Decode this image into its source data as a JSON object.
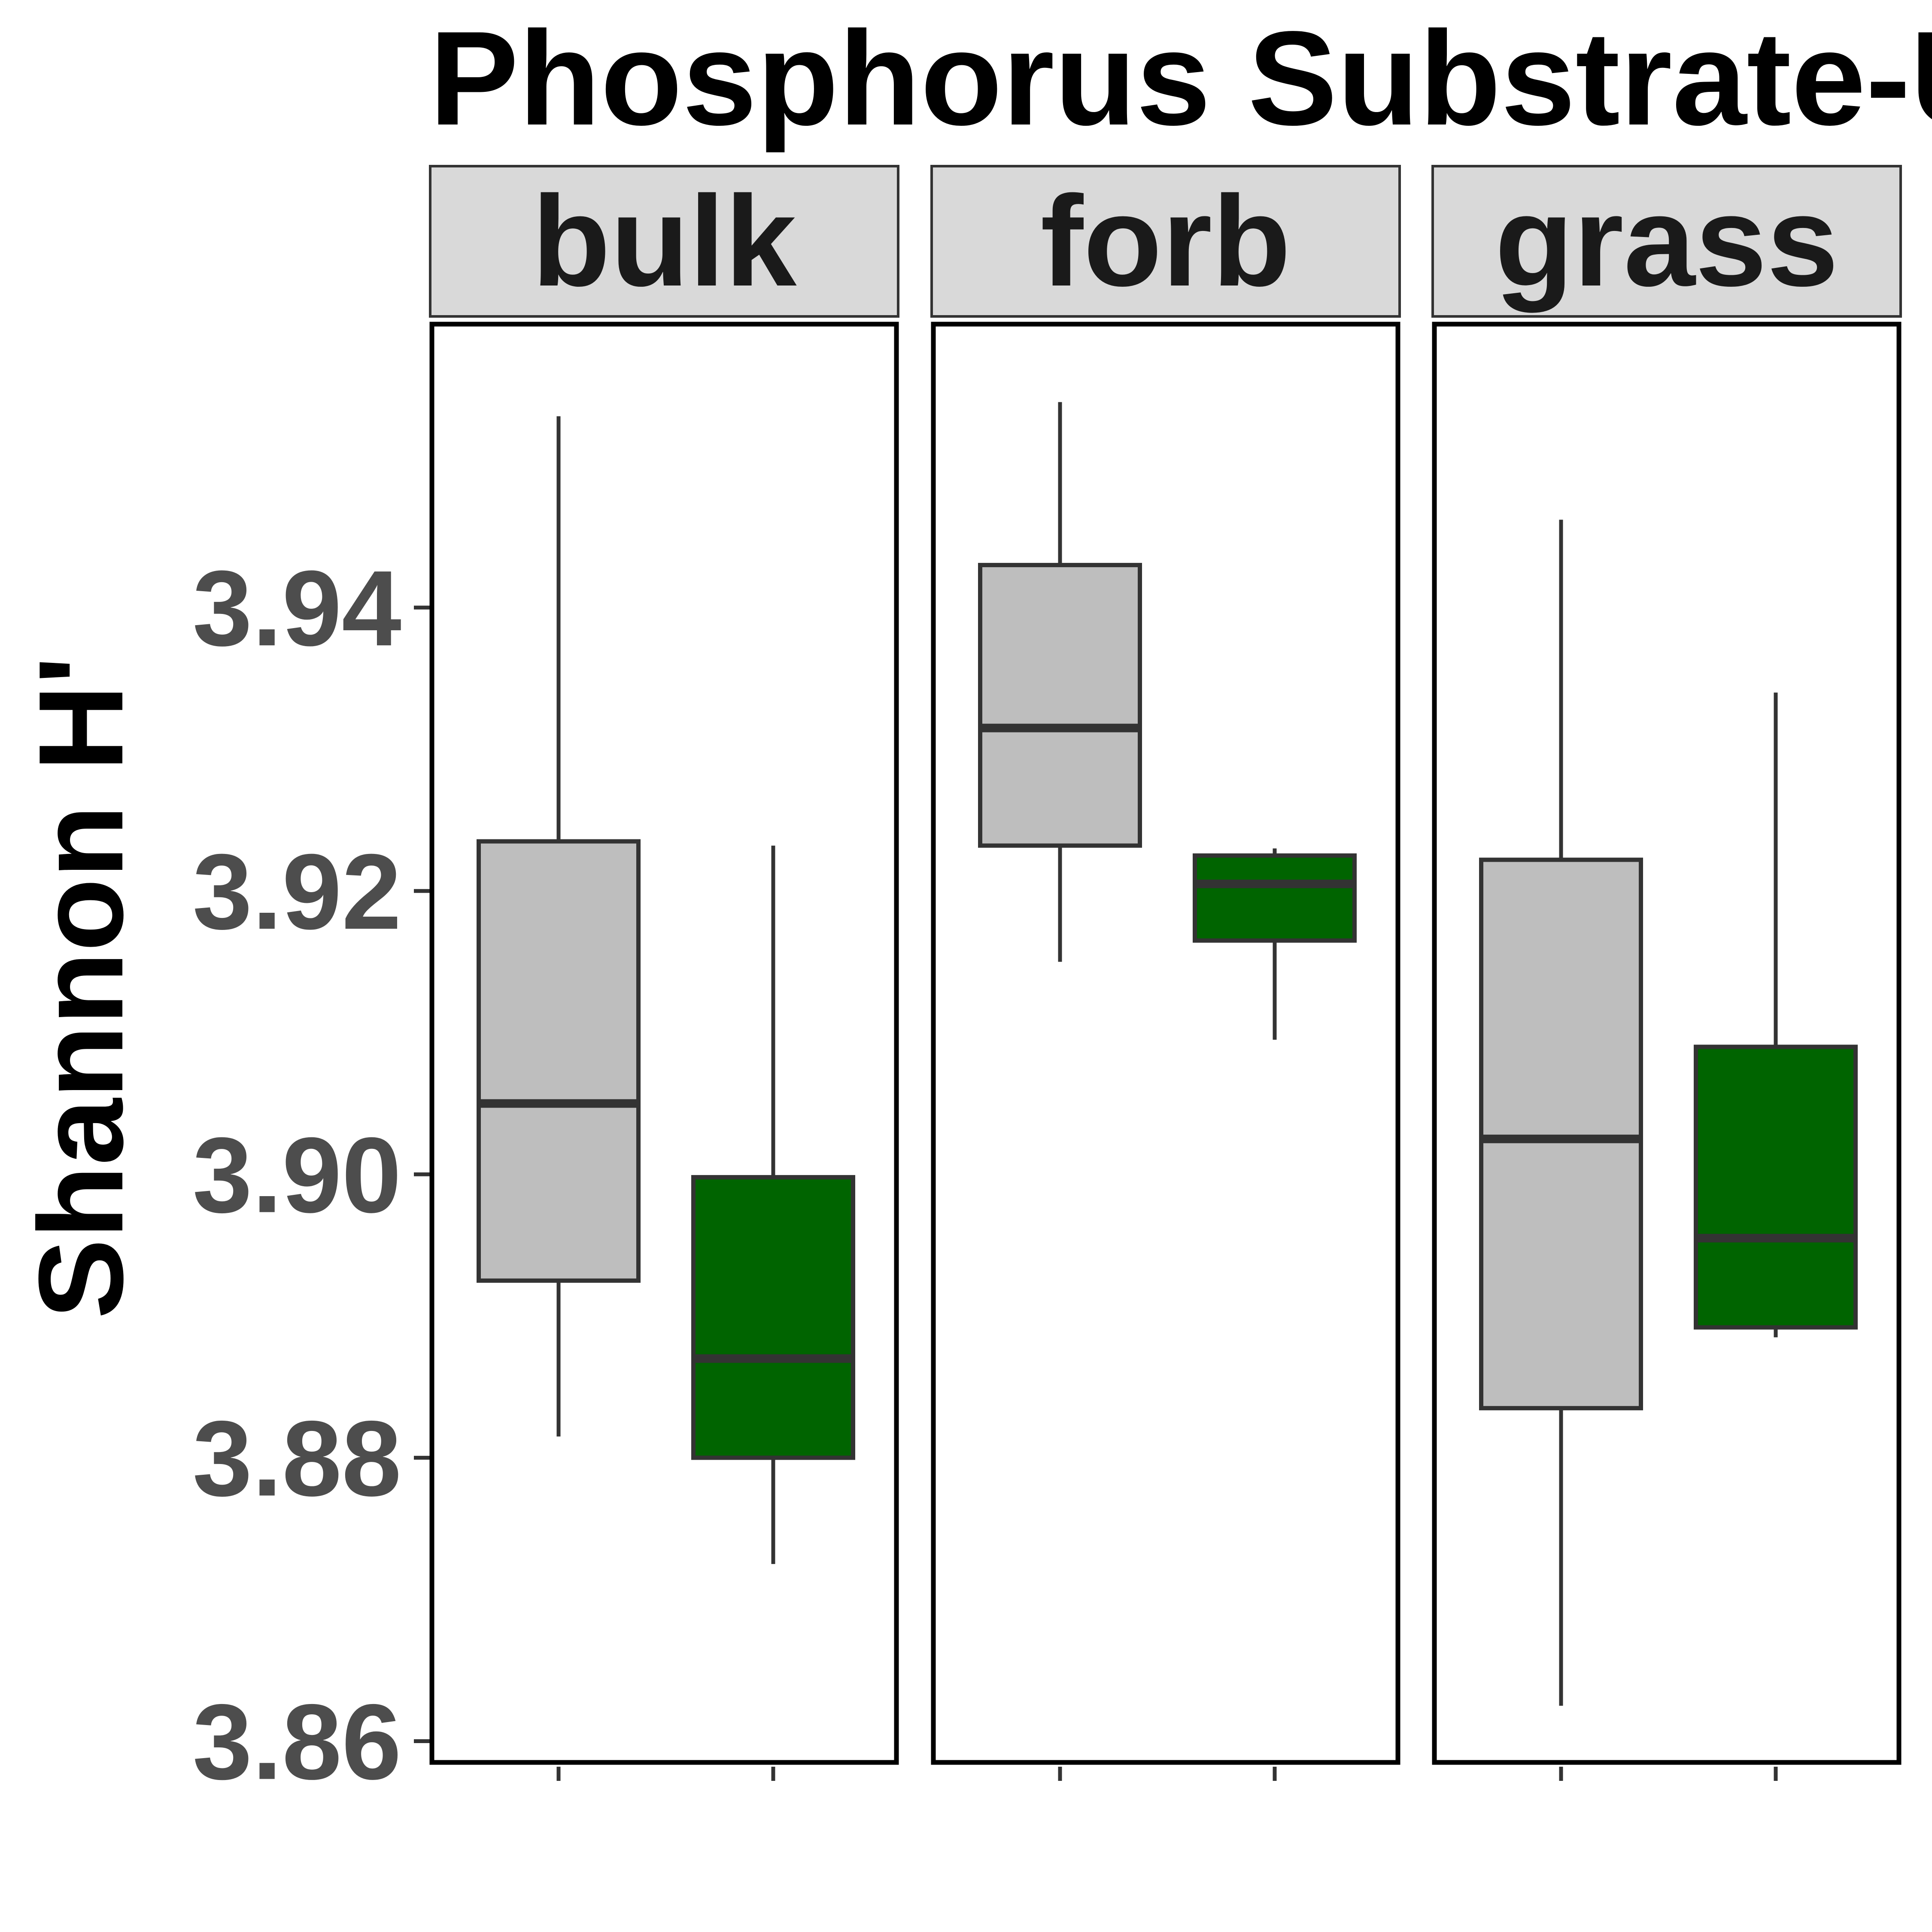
{
  "chart_data": {
    "type": "box",
    "title": "Phosphorus Substrate-U",
    "ylabel": "Shannon H'",
    "xlabel": "",
    "ylim": [
      3.8585,
      3.96
    ],
    "yticks": [
      3.86,
      3.88,
      3.9,
      3.92,
      3.94
    ],
    "ytick_labels": [
      "3.86",
      "3.88",
      "3.90",
      "3.92",
      "3.94"
    ],
    "grid": false,
    "legend": "none",
    "colors": {
      "fill_a": "#bebebe",
      "fill_b": "#006400",
      "outline": "#333333",
      "strip_bg": "#d9d9d9"
    },
    "panels": [
      {
        "facet": "bulk",
        "boxes": [
          {
            "fill": "#bebebe",
            "whisker_low": 3.8815,
            "q1": 3.8925,
            "median": 3.905,
            "q3": 3.9235,
            "whisker_high": 3.9535
          },
          {
            "fill": "#006400",
            "whisker_low": 3.8725,
            "q1": 3.88,
            "median": 3.887,
            "q3": 3.8998,
            "whisker_high": 3.9232
          }
        ]
      },
      {
        "facet": "forb",
        "boxes": [
          {
            "fill": "#bebebe",
            "whisker_low": 3.915,
            "q1": 3.9232,
            "median": 3.9315,
            "q3": 3.943,
            "whisker_high": 3.9545
          },
          {
            "fill": "#006400",
            "whisker_low": 3.9095,
            "q1": 3.9165,
            "median": 3.9205,
            "q3": 3.9225,
            "whisker_high": 3.923
          }
        ]
      },
      {
        "facet": "grass",
        "boxes": [
          {
            "fill": "#bebebe",
            "whisker_low": 3.8625,
            "q1": 3.8835,
            "median": 3.9025,
            "q3": 3.9222,
            "whisker_high": 3.9462
          },
          {
            "fill": "#006400",
            "whisker_low": 3.8885,
            "q1": 3.8892,
            "median": 3.8955,
            "q3": 3.909,
            "whisker_high": 3.934
          }
        ]
      }
    ]
  }
}
